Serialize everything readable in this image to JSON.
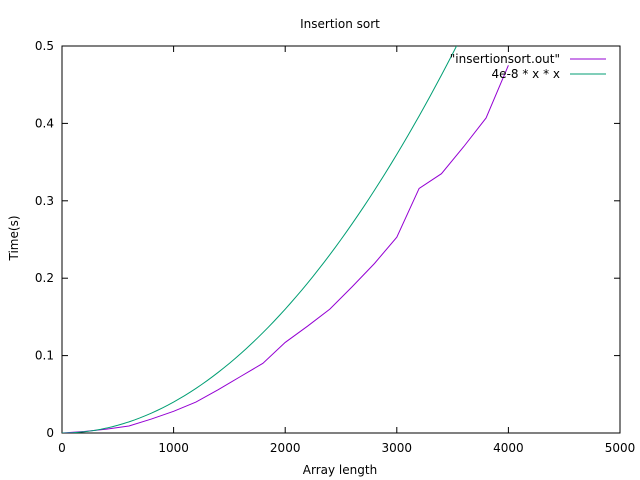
{
  "chart_data": {
    "type": "line",
    "title": "Insertion sort",
    "xlabel": "Array length",
    "ylabel": "Time(s)",
    "xlim": [
      0,
      5000
    ],
    "ylim": [
      0,
      0.5
    ],
    "x_ticks": [
      0,
      1000,
      2000,
      3000,
      4000,
      5000
    ],
    "y_ticks": [
      0,
      0.1,
      0.2,
      0.3,
      0.4,
      0.5
    ],
    "x_tick_labels": [
      "0",
      "1000",
      "2000",
      "3000",
      "4000",
      "5000"
    ],
    "y_tick_labels": [
      "0",
      "0.1",
      "0.2",
      "0.3",
      "0.4",
      "0.5"
    ],
    "grid": false,
    "legend_position": "top-right",
    "series": [
      {
        "name": "\"insertionsort.out\"",
        "kind": "data",
        "color": "#9400d3",
        "x": [
          0,
          200,
          400,
          600,
          800,
          1000,
          1200,
          1400,
          1600,
          1800,
          2000,
          2200,
          2400,
          2600,
          2800,
          3000,
          3200,
          3400,
          3600,
          3800,
          4000
        ],
        "y": [
          0,
          0.002,
          0.005,
          0.009,
          0.018,
          0.028,
          0.04,
          0.056,
          0.073,
          0.09,
          0.117,
          0.138,
          0.16,
          0.189,
          0.219,
          0.253,
          0.316,
          0.335,
          0.37,
          0.407,
          0.475
        ]
      },
      {
        "name": "4e-8 * x * x",
        "kind": "function",
        "color": "#009e73",
        "coefficient": 4e-08,
        "x_range": [
          0,
          5000
        ]
      }
    ]
  }
}
